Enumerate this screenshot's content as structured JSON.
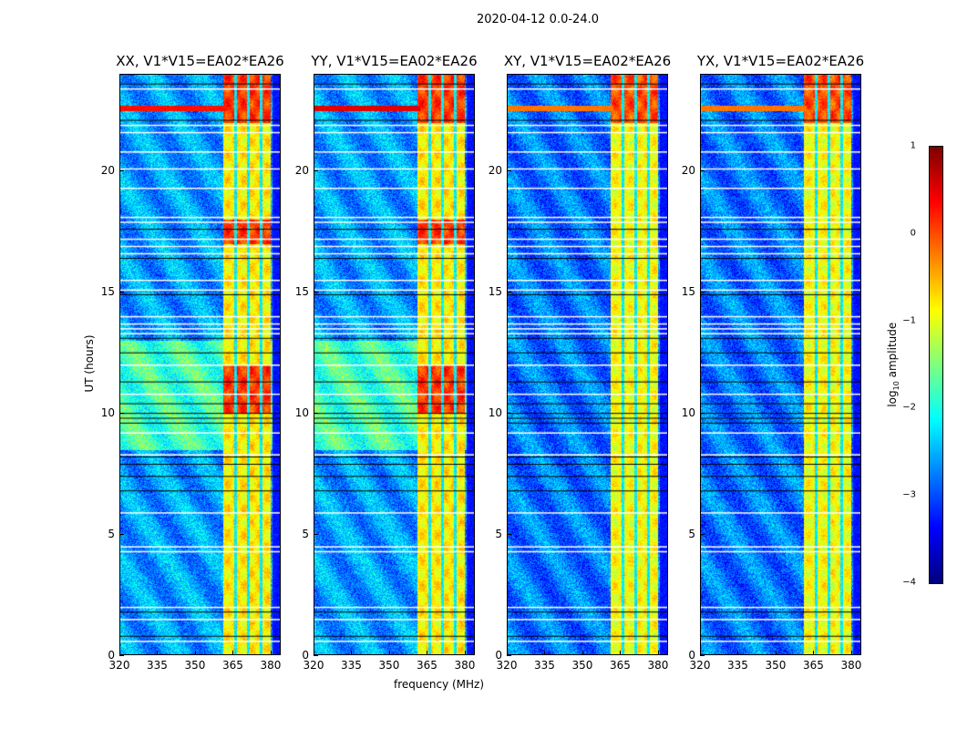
{
  "suptitle": "2020-04-12 0.0-24.0",
  "xlabel": "frequency (MHz)",
  "ylabel": "UT (hours)",
  "colorbar": {
    "label_prefix": "log",
    "label_sub": "10",
    "label_suffix": " amplitude",
    "ticks": [
      "1",
      "0",
      "−1",
      "−2",
      "−3",
      "−4"
    ],
    "values": [
      1,
      0,
      -1,
      -2,
      -3,
      -4
    ],
    "range": [
      -4,
      1
    ],
    "colormap": "jet"
  },
  "chart_data": [
    {
      "type": "heatmap",
      "title": "XX, V1*V15=EA02*EA26",
      "xlim": [
        320,
        384
      ],
      "ylim": [
        0,
        24
      ],
      "xticks": [
        "320",
        "335",
        "350",
        "365",
        "380"
      ],
      "xtick_values": [
        320,
        335,
        350,
        365,
        380
      ],
      "yticks": [
        "0",
        "5",
        "10",
        "15",
        "20"
      ],
      "ytick_values": [
        0,
        5,
        10,
        15,
        20
      ],
      "background_level": -2.6,
      "rfi_band_mhz": [
        361,
        380
      ],
      "rfi_level": -0.8,
      "strong_hours": [
        [
          10,
          12
        ],
        [
          17,
          18
        ],
        [
          22,
          24
        ]
      ],
      "elevated_bg_hours": [
        [
          8.5,
          13
        ]
      ],
      "line_hour": 22.6,
      "line_strength": 0.3
    },
    {
      "type": "heatmap",
      "title": "YY, V1*V15=EA02*EA26",
      "xlim": [
        320,
        384
      ],
      "ylim": [
        0,
        24
      ],
      "xticks": [
        "320",
        "335",
        "350",
        "365",
        "380"
      ],
      "xtick_values": [
        320,
        335,
        350,
        365,
        380
      ],
      "yticks": [
        "0",
        "5",
        "10",
        "15",
        "20"
      ],
      "ytick_values": [
        0,
        5,
        10,
        15,
        20
      ],
      "background_level": -2.6,
      "rfi_band_mhz": [
        361,
        380
      ],
      "rfi_level": -0.8,
      "strong_hours": [
        [
          10,
          12
        ],
        [
          17,
          18
        ],
        [
          22,
          24
        ]
      ],
      "elevated_bg_hours": [
        [
          8.5,
          13
        ]
      ],
      "line_hour": 22.6,
      "line_strength": 0.5
    },
    {
      "type": "heatmap",
      "title": "XY, V1*V15=EA02*EA26",
      "xlim": [
        320,
        384
      ],
      "ylim": [
        0,
        24
      ],
      "xticks": [
        "320",
        "335",
        "350",
        "365",
        "380"
      ],
      "xtick_values": [
        320,
        335,
        350,
        365,
        380
      ],
      "yticks": [
        "0",
        "5",
        "10",
        "15",
        "20"
      ],
      "ytick_values": [
        0,
        5,
        10,
        15,
        20
      ],
      "background_level": -2.8,
      "rfi_band_mhz": [
        361,
        380
      ],
      "rfi_level": -0.9,
      "strong_hours": [
        [
          22,
          24
        ]
      ],
      "elevated_bg_hours": [],
      "line_hour": 22.6,
      "line_strength": -0.2
    },
    {
      "type": "heatmap",
      "title": "YX, V1*V15=EA02*EA26",
      "xlim": [
        320,
        384
      ],
      "ylim": [
        0,
        24
      ],
      "xticks": [
        "320",
        "335",
        "350",
        "365",
        "380"
      ],
      "xtick_values": [
        320,
        335,
        350,
        365,
        380
      ],
      "yticks": [
        "0",
        "5",
        "10",
        "15",
        "20"
      ],
      "ytick_values": [
        0,
        5,
        10,
        15,
        20
      ],
      "background_level": -2.8,
      "rfi_band_mhz": [
        361,
        380
      ],
      "rfi_level": -0.9,
      "strong_hours": [
        [
          22,
          24
        ]
      ],
      "elevated_bg_hours": [],
      "line_hour": 22.6,
      "line_strength": -0.2
    }
  ],
  "flagged_white_hours": [
    0.6,
    1.5,
    2.0,
    4.3,
    4.5,
    5.9,
    8.3,
    9.2,
    10.8,
    12.0,
    13.3,
    13.5,
    13.7,
    14.0,
    15.1,
    15.5,
    16.6,
    16.9,
    17.2,
    17.9,
    18.1,
    19.3,
    20.1,
    20.8,
    21.6,
    21.9,
    23.4
  ],
  "black_hours": [
    0.8,
    1.8,
    6.8,
    7.4,
    7.9,
    8.2,
    9.6,
    9.8,
    10.0,
    10.4,
    11.3,
    12.5,
    13.1,
    14.9,
    16.4,
    17.6,
    22.1,
    23.6
  ]
}
